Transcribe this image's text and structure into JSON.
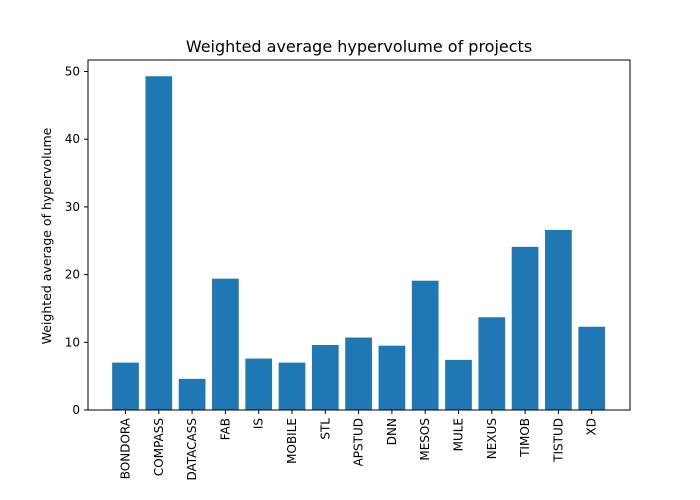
{
  "chart_data": {
    "type": "bar",
    "title": "Weighted average hypervolume of projects",
    "xlabel": "",
    "ylabel": "Weighted average of hypervolume",
    "categories": [
      "BONDORA",
      "COMPASS",
      "DATACASS",
      "FAB",
      "IS",
      "MOBILE",
      "STL",
      "APSTUD",
      "DNN",
      "MESOS",
      "MULE",
      "NEXUS",
      "TIMOB",
      "TISTUD",
      "XD"
    ],
    "values": [
      7.0,
      49.3,
      4.6,
      19.4,
      7.6,
      7.0,
      9.6,
      10.7,
      9.5,
      19.1,
      7.4,
      13.7,
      24.1,
      26.6,
      12.3
    ],
    "ylim": [
      0,
      51.7
    ],
    "yticks": [
      0,
      10,
      20,
      30,
      40,
      50
    ],
    "bar_color": "#1f77b4",
    "grid": false,
    "legend": "none"
  }
}
